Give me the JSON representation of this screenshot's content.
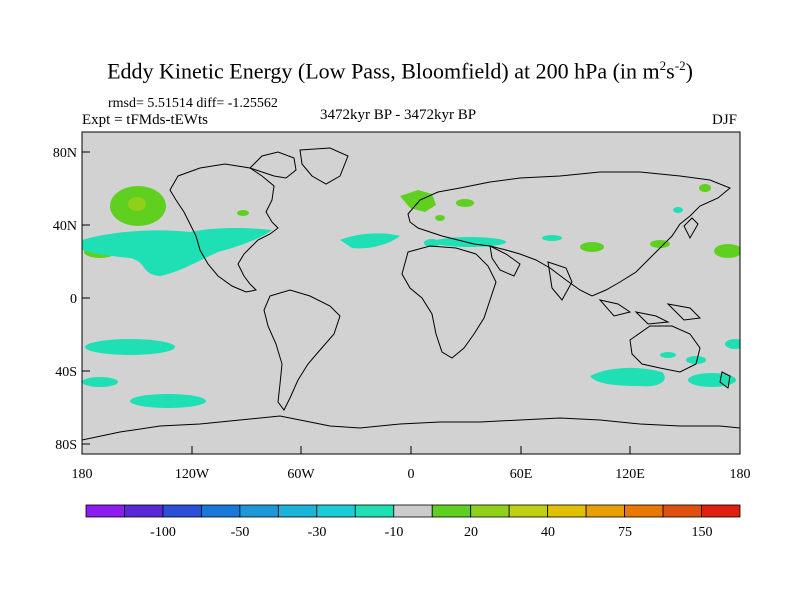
{
  "title": {
    "main": "Eddy Kinetic Energy (Low Pass, Bloomfield) at 200 hPa (in m",
    "sup1": "2",
    "mid": "s",
    "sup2": "-2",
    "end": ")"
  },
  "stats": "rmsd= 5.51514  diff= -1.25562",
  "expt": "Expt = tFMds-tEWts",
  "period": "3472kyr BP - 3472kyr BP",
  "season": "DJF",
  "lat_ticks": [
    "80N",
    "40N",
    "0",
    "40S",
    "80S"
  ],
  "lon_ticks": [
    "180",
    "120W",
    "60W",
    "0",
    "60E",
    "120E",
    "180"
  ],
  "colorbar": {
    "colors": [
      "#8c1cf0",
      "#5a28d8",
      "#2a50d8",
      "#1978d8",
      "#1a98d8",
      "#1ab4d8",
      "#18ccd8",
      "#1ee0b4",
      "#cccccc",
      "#60d020",
      "#90d018",
      "#c0d010",
      "#e0c000",
      "#e8a000",
      "#e87800",
      "#e05010",
      "#e02010"
    ],
    "labels": [
      "-100",
      "-50",
      "-30",
      "-10",
      "20",
      "40",
      "75",
      "150"
    ]
  },
  "colors": {
    "land_sea_background": "#d2d2d2",
    "positive_light": "#60d020",
    "positive_mid": "#90d018",
    "negative_light": "#1ee0b4"
  }
}
